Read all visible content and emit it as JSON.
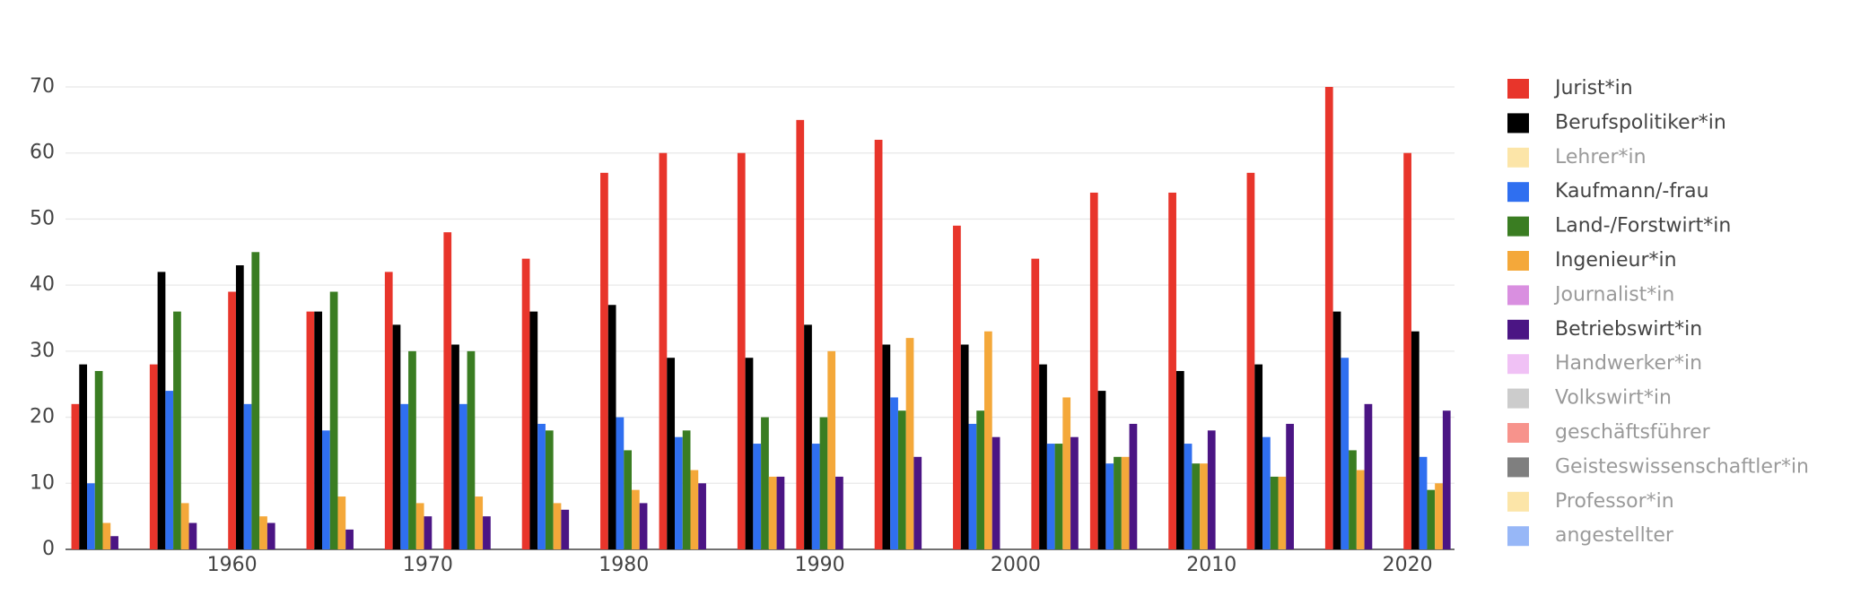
{
  "chart_data": {
    "type": "bar",
    "x": [
      1953,
      1957,
      1961,
      1965,
      1969,
      1972,
      1976,
      1980,
      1983,
      1987,
      1990,
      1994,
      1998,
      2002,
      2005,
      2009,
      2013,
      2017,
      2021
    ],
    "series": [
      {
        "name": "Jurist*in",
        "color": "#e8352b",
        "values": [
          22,
          28,
          39,
          36,
          42,
          48,
          44,
          57,
          60,
          60,
          65,
          62,
          49,
          44,
          54,
          54,
          57,
          70,
          60
        ]
      },
      {
        "name": "Berufspolitiker*in",
        "color": "#000000",
        "values": [
          28,
          42,
          43,
          36,
          34,
          31,
          36,
          37,
          29,
          29,
          34,
          31,
          31,
          28,
          24,
          27,
          28,
          36,
          33
        ]
      },
      {
        "name": "Lehrer*in",
        "color": "#f9cb52",
        "visible": "legendonly"
      },
      {
        "name": "Kaufmann/-frau",
        "color": "#2f6ff0",
        "values": [
          10,
          24,
          22,
          18,
          22,
          22,
          19,
          20,
          17,
          16,
          16,
          23,
          19,
          16,
          13,
          16,
          17,
          29,
          14
        ]
      },
      {
        "name": "Land-/Forstwirt*in",
        "color": "#3a7d22",
        "values": [
          27,
          36,
          45,
          39,
          30,
          30,
          18,
          15,
          18,
          20,
          20,
          21,
          21,
          16,
          14,
          13,
          11,
          15,
          9
        ]
      },
      {
        "name": "Ingenieur*in",
        "color": "#f4a83a",
        "values": [
          4,
          7,
          5,
          8,
          7,
          8,
          7,
          9,
          12,
          11,
          30,
          32,
          33,
          23,
          14,
          13,
          11,
          12,
          10
        ]
      },
      {
        "name": "Journalist*in",
        "color": "#b31fc1",
        "visible": "legendonly"
      },
      {
        "name": "Betriebswirt*in",
        "color": "#4b1584",
        "values": [
          2,
          4,
          4,
          3,
          5,
          5,
          6,
          7,
          10,
          11,
          11,
          14,
          17,
          17,
          19,
          18,
          19,
          22,
          21
        ]
      },
      {
        "name": "Handwerker*in",
        "color": "#e184ec",
        "visible": "legendonly"
      },
      {
        "name": "Volkswirt*in",
        "color": "#999999",
        "visible": "legendonly"
      },
      {
        "name": "geschäftsführer",
        "color": "#f0281a",
        "visible": "legendonly"
      },
      {
        "name": "Geisteswissenschaftler*in",
        "color": "#000000",
        "visible": "legendonly"
      },
      {
        "name": "Professor*in",
        "color": "#f9cb52",
        "visible": "legendonly"
      },
      {
        "name": "angestellter",
        "color": "#2f6ff0",
        "visible": "legendonly"
      }
    ],
    "xlim": [
      1951.5,
      2022.4
    ],
    "xticks": [
      1960,
      1970,
      1980,
      1990,
      2000,
      2010,
      2020
    ],
    "ylim": [
      0,
      70
    ],
    "yticks": [
      0,
      10,
      20,
      30,
      40,
      50,
      60,
      70
    ],
    "grid": true
  }
}
